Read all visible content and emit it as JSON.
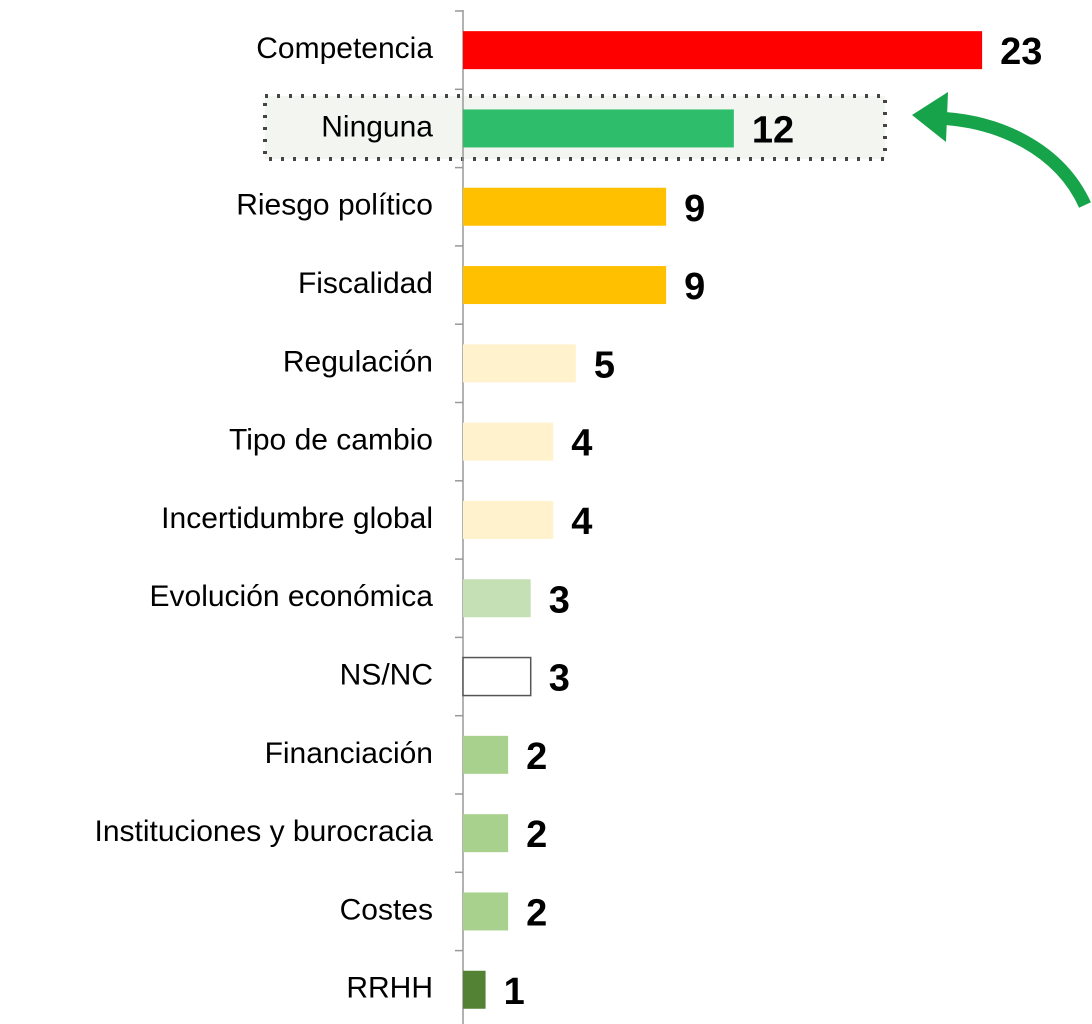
{
  "chart_data": {
    "type": "bar",
    "orientation": "horizontal",
    "categories": [
      "Competencia",
      "Ninguna",
      "Riesgo político",
      "Fiscalidad",
      "Regulación",
      "Tipo de cambio",
      "Incertidumbre global",
      "Evolución económica",
      "NS/NC",
      "Financiación",
      "Instituciones y burocracia",
      "Costes",
      "RRHH"
    ],
    "values": [
      23,
      12,
      9,
      9,
      5,
      4,
      4,
      3,
      3,
      2,
      2,
      2,
      1
    ],
    "colors": [
      "#ff0000",
      "#2ebd6b",
      "#ffc000",
      "#ffc000",
      "#fff2cc",
      "#fff2cc",
      "#fff2cc",
      "#c5e0b4",
      "#ffffff",
      "#a9d18e",
      "#a9d18e",
      "#a9d18e",
      "#548235"
    ],
    "xlim": [
      0,
      24
    ],
    "highlight": "Ninguna"
  }
}
